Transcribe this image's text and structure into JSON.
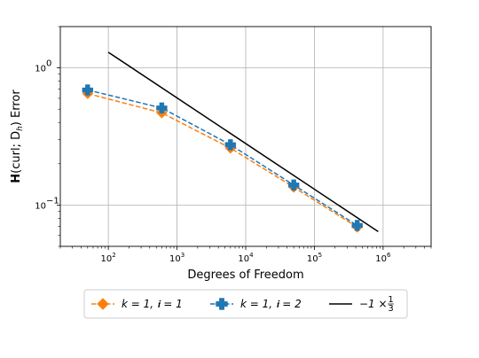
{
  "chart_data": {
    "type": "line",
    "xscale": "log",
    "yscale": "log",
    "xlim": [
      20,
      5000000
    ],
    "ylim": [
      0.05,
      2.0
    ],
    "xlabel": "Degrees of Freedom",
    "ylabel_prefix": "H",
    "ylabel_rest": "(curl; D",
    "ylabel_sub": "h",
    "ylabel_suffix": ") Error",
    "grid": true,
    "legend_position": "below",
    "x_ticks": [
      {
        "value": 100,
        "base": "10",
        "exp": "2"
      },
      {
        "value": 1000,
        "base": "10",
        "exp": "3"
      },
      {
        "value": 10000,
        "base": "10",
        "exp": "4"
      },
      {
        "value": 100000,
        "base": "10",
        "exp": "5"
      },
      {
        "value": 1000000,
        "base": "10",
        "exp": "6"
      }
    ],
    "y_ticks": [
      {
        "value": 0.1,
        "base": "10",
        "exp": "−1"
      },
      {
        "value": 1,
        "base": "10",
        "exp": "0"
      }
    ],
    "series": [
      {
        "name": "k = 1, 𝖎 = 1",
        "color": "#ff7f0e",
        "linestyle": "dashed",
        "marker": "diamond",
        "x": [
          50,
          600,
          6000,
          50000,
          420000
        ],
        "y": [
          0.65,
          0.47,
          0.26,
          0.135,
          0.069
        ]
      },
      {
        "name": "k = 1, 𝖎 = 2",
        "color": "#1f77b4",
        "linestyle": "dashed",
        "marker": "plus",
        "x": [
          50,
          600,
          6000,
          50000,
          420000
        ],
        "y": [
          0.69,
          0.51,
          0.275,
          0.14,
          0.071
        ]
      },
      {
        "name": "−1 × 1/3",
        "color": "#000000",
        "linestyle": "solid",
        "marker": "none",
        "x": [
          100,
          850000
        ],
        "y": [
          1.3,
          0.064
        ]
      }
    ],
    "legend": [
      {
        "text_a": "k = 1, ",
        "text_b": "𝖎 = 1",
        "color": "#ff7f0e",
        "marker": "diamond"
      },
      {
        "text_a": "k = 1, ",
        "text_b": "𝖎 = 2",
        "color": "#1f77b4",
        "marker": "plus"
      },
      {
        "text_a": "−1 × ",
        "frac_num": "1",
        "frac_den": "3",
        "color": "#000000",
        "marker": "none"
      }
    ]
  }
}
